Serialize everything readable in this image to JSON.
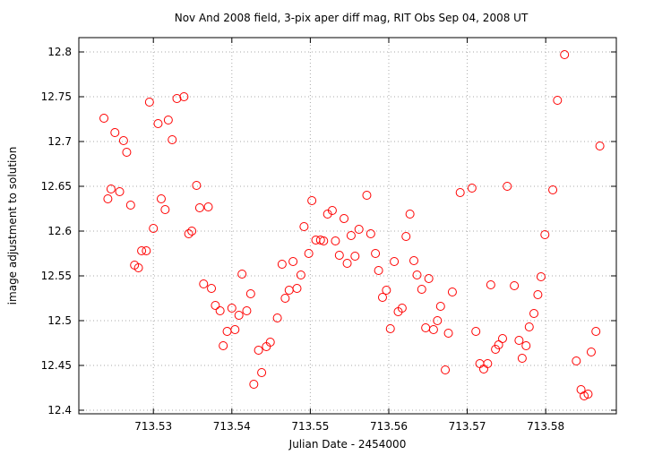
{
  "chart_data": {
    "type": "scatter",
    "title": "Nov And 2008 field,  3-pix aper diff mag, RIT Obs Sep 04, 2008 UT",
    "x_label": "Julian Date - 2454000",
    "y_label": "image adjustment to solution",
    "color": "#ff0000",
    "grid": true,
    "xlim": [
      713.5205,
      713.589
    ],
    "ylim": [
      12.396,
      12.816
    ],
    "xticks": [
      713.53,
      713.54,
      713.55,
      713.56,
      713.57,
      713.58
    ],
    "yticks": [
      12.4,
      12.45,
      12.5,
      12.55,
      12.6,
      12.65,
      12.7,
      12.75,
      12.8
    ],
    "x": [
      713.5237,
      713.5242,
      713.5246,
      713.5251,
      713.5257,
      713.5262,
      713.5266,
      713.5271,
      713.5276,
      713.5281,
      713.5285,
      713.5291,
      713.5295,
      713.53,
      713.5306,
      713.531,
      713.5315,
      713.5319,
      713.5324,
      713.533,
      713.5339,
      713.5345,
      713.5349,
      713.5355,
      713.5359,
      713.5364,
      713.537,
      713.5374,
      713.5379,
      713.5385,
      713.5389,
      713.5394,
      713.54,
      713.5404,
      713.5409,
      713.5413,
      713.5419,
      713.5424,
      713.5428,
      713.5434,
      713.5438,
      713.5444,
      713.5449,
      713.5458,
      713.5464,
      713.5468,
      713.5473,
      713.5478,
      713.5483,
      713.5488,
      713.5492,
      713.5498,
      713.5502,
      713.5507,
      713.5513,
      713.5517,
      713.5522,
      713.5528,
      713.5532,
      713.5537,
      713.5543,
      713.5547,
      713.5552,
      713.5557,
      713.5562,
      713.5572,
      713.5577,
      713.5583,
      713.5587,
      713.5592,
      713.5597,
      713.5602,
      713.5607,
      713.5612,
      713.5617,
      713.5622,
      713.5627,
      713.5632,
      713.5636,
      713.5642,
      713.5647,
      713.5651,
      713.5657,
      713.5662,
      713.5666,
      713.5672,
      713.5676,
      713.5681,
      713.5691,
      713.5706,
      713.5711,
      713.5716,
      713.5721,
      713.5726,
      713.573,
      713.5736,
      713.574,
      713.5745,
      713.5751,
      713.576,
      713.5766,
      713.577,
      713.5775,
      713.5779,
      713.5785,
      713.579,
      713.5794,
      713.5799,
      713.5809,
      713.5815,
      713.5824,
      713.5839,
      713.5845,
      713.5849,
      713.5854,
      713.5858,
      713.5864,
      713.5869
    ],
    "values": [
      12.726,
      12.636,
      12.647,
      12.71,
      12.644,
      12.701,
      12.688,
      12.629,
      12.562,
      12.559,
      12.578,
      12.578,
      12.744,
      12.603,
      12.72,
      12.636,
      12.624,
      12.724,
      12.702,
      12.748,
      12.75,
      12.597,
      12.6,
      12.651,
      12.626,
      12.541,
      12.627,
      12.536,
      12.517,
      12.511,
      12.472,
      12.488,
      12.514,
      12.49,
      12.506,
      12.552,
      12.511,
      12.53,
      12.429,
      12.467,
      12.442,
      12.471,
      12.476,
      12.503,
      12.563,
      12.525,
      12.534,
      12.566,
      12.536,
      12.551,
      12.605,
      12.575,
      12.634,
      12.59,
      12.59,
      12.589,
      12.619,
      12.623,
      12.589,
      12.573,
      12.614,
      12.564,
      12.595,
      12.572,
      12.602,
      12.64,
      12.597,
      12.575,
      12.556,
      12.526,
      12.534,
      12.491,
      12.566,
      12.51,
      12.514,
      12.594,
      12.619,
      12.567,
      12.551,
      12.535,
      12.492,
      12.547,
      12.49,
      12.5,
      12.516,
      12.445,
      12.486,
      12.532,
      12.643,
      12.648,
      12.488,
      12.452,
      12.446,
      12.452,
      12.54,
      12.468,
      12.473,
      12.48,
      12.65,
      12.539,
      12.478,
      12.458,
      12.472,
      12.493,
      12.508,
      12.529,
      12.549,
      12.596,
      12.646,
      12.746,
      12.797,
      12.455,
      12.423,
      12.416,
      12.418,
      12.465,
      12.488,
      12.695
    ]
  }
}
